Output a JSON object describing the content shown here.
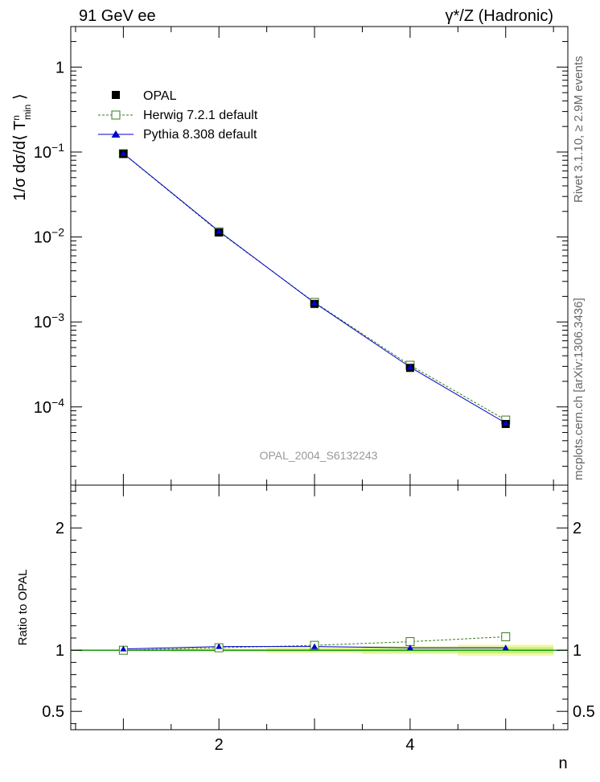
{
  "header": {
    "left": "91 GeV ee",
    "right": "γ*/Z (Hadronic)"
  },
  "side_text": {
    "rivet": "Rivet 3.1.10, ≥ 2.9M events",
    "mcplots": "mcplots.cern.ch [arXiv:1306.3436]"
  },
  "watermark": "OPAL_2004_S6132243",
  "chart_data": [
    {
      "type": "line",
      "panel": "main",
      "ylabel": "1/σ dσ/d⟨ T min n ⟩",
      "yscale": "log",
      "ylim": [
        1.2e-05,
        3.0
      ],
      "xlim": [
        0.45,
        5.65
      ],
      "y_tick_labels": [
        "1",
        "10^-1",
        "10^-2",
        "10^-3",
        "10^-4"
      ],
      "x": [
        1,
        2,
        3,
        4,
        5
      ],
      "series": [
        {
          "name": "OPAL",
          "style": "data",
          "color": "#000000",
          "values": [
            0.095,
            0.0113,
            0.00163,
            0.000288,
            6.3e-05
          ]
        },
        {
          "name": "Herwig 7.2.1 default",
          "style": "dashed-open-square",
          "color": "#3a7d1e",
          "values": [
            0.0957,
            0.0115,
            0.0017,
            0.000309,
            7e-05
          ]
        },
        {
          "name": "Pythia 8.308 default",
          "style": "solid-triangle",
          "color": "#0000cc",
          "values": [
            0.0962,
            0.0117,
            0.00168,
            0.000294,
            6.45e-05
          ]
        }
      ],
      "legend_position": "top-left"
    },
    {
      "type": "line",
      "panel": "ratio",
      "ylabel": "Ratio to OPAL",
      "ylim": [
        0.35,
        2.35
      ],
      "xlim": [
        0.45,
        5.65
      ],
      "y_tick_labels": [
        "0.5",
        "1",
        "2"
      ],
      "x_tick_labels": [
        "2",
        "4"
      ],
      "xlabel": "n",
      "x": [
        1,
        2,
        3,
        4,
        5
      ],
      "series": [
        {
          "name": "Herwig 7.2.1 default",
          "color": "#3a7d1e",
          "values": [
            1.0,
            1.02,
            1.04,
            1.07,
            1.11
          ]
        },
        {
          "name": "Pythia 8.308 default",
          "color": "#0000cc",
          "values": [
            1.01,
            1.03,
            1.03,
            1.02,
            1.02
          ]
        }
      ],
      "uncertainty_band": {
        "x": [
          1,
          2,
          3,
          4,
          5
        ],
        "inner": [
          0.004,
          0.008,
          0.012,
          0.018,
          0.025
        ],
        "outer": [
          0.008,
          0.014,
          0.022,
          0.032,
          0.045
        ]
      }
    }
  ]
}
